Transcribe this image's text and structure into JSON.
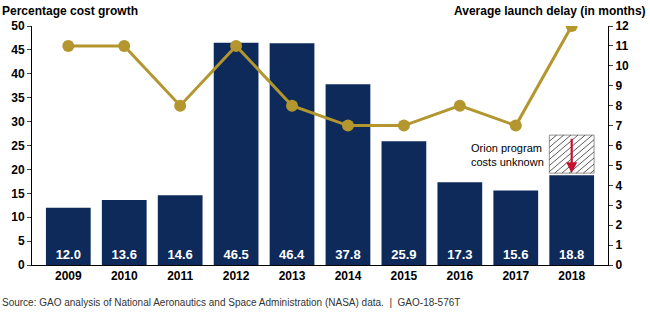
{
  "chart_data": {
    "type": "bar",
    "y_label": "Percentage cost growth",
    "y2_label": "Average launch delay (in months)",
    "source": "Source: GAO analysis of National Aeronautics and Space Administration (NASA) data.  |  GAO-18-576T",
    "categories": [
      "2009",
      "2010",
      "2011",
      "2012",
      "2013",
      "2014",
      "2015",
      "2016",
      "2017",
      "2018"
    ],
    "series": [
      {
        "type": "bar",
        "color": "#0d2a5a",
        "values": [
          12.0,
          13.6,
          14.6,
          46.5,
          46.4,
          37.8,
          25.9,
          17.3,
          15.6,
          18.8
        ],
        "value_labels": [
          "12.0",
          "13.6",
          "14.6",
          "46.5",
          "46.4",
          "37.8",
          "25.9",
          "17.3",
          "15.6",
          "18.8"
        ],
        "data_labels": true
      },
      {
        "type": "line",
        "axis": "y2",
        "color": "#b3962e",
        "marker": "circle",
        "line_style": "solid",
        "values": [
          11,
          11,
          8,
          11,
          8,
          7,
          7,
          8,
          7,
          12
        ]
      }
    ],
    "ylim": [
      0,
      50
    ],
    "yticks": [
      0,
      5,
      10,
      15,
      20,
      25,
      30,
      35,
      40,
      45,
      50
    ],
    "y2lim": [
      0,
      12
    ],
    "y2ticks": [
      0,
      1,
      2,
      3,
      4,
      5,
      6,
      7,
      8,
      9,
      10,
      11,
      12
    ],
    "grid": false,
    "annotations": [
      {
        "text": [
          "Orion program",
          "costs unknown"
        ],
        "category": "2018"
      }
    ]
  }
}
